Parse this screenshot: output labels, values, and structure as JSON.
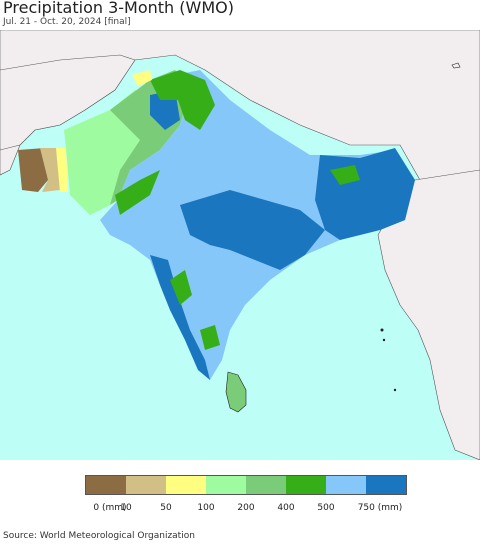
{
  "header": {
    "title": "Precipitation 3-Month (WMO)",
    "subtitle": "Jul. 21 - Oct. 20, 2024 [final]"
  },
  "map": {
    "colors": {
      "ocean": "#bdfff7",
      "land_outside": "#f2eef0",
      "border": "#555555",
      "coastline": "#222222"
    }
  },
  "legend": {
    "swatches": [
      {
        "color": "#8b6c43"
      },
      {
        "color": "#d2bf86"
      },
      {
        "color": "#fffe80"
      },
      {
        "color": "#9ffb9f"
      },
      {
        "color": "#7bcc78"
      },
      {
        "color": "#36ae18"
      },
      {
        "color": "#86c7f9"
      },
      {
        "color": "#1a76be"
      }
    ],
    "ticks": [
      "0 (mm)",
      "10",
      "50",
      "100",
      "200",
      "400",
      "500",
      "750 (mm)"
    ]
  },
  "footer": {
    "source": "Source: World Meteorological Organization"
  }
}
